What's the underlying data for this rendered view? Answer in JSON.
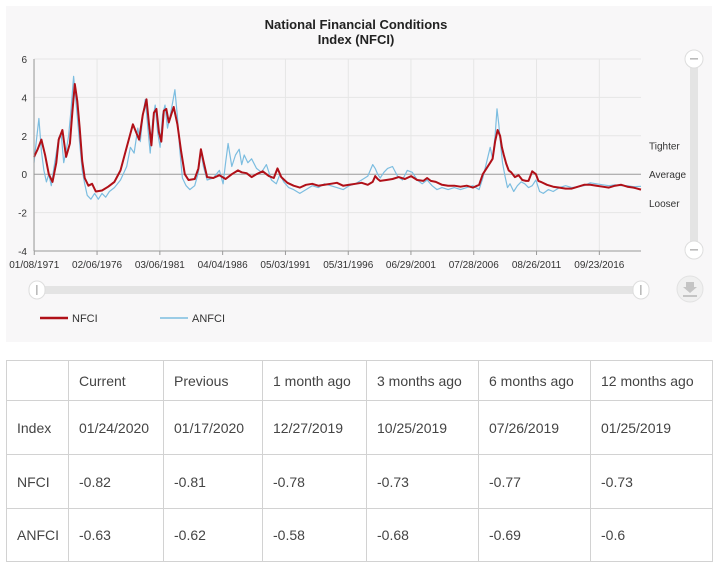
{
  "chart_data": {
    "type": "line",
    "title_line1": "National Financial Conditions",
    "title_line2": "Index (NFCI)",
    "ylim": [
      -4,
      6
    ],
    "yticks": [
      -4,
      -2,
      0,
      2,
      4,
      6
    ],
    "xlim": [
      1971.0,
      2020.1
    ],
    "xticks": [
      {
        "label": "01/08/1971",
        "x": 1971.02
      },
      {
        "label": "02/06/1976",
        "x": 1976.1
      },
      {
        "label": "03/06/1981",
        "x": 1981.18
      },
      {
        "label": "04/04/1986",
        "x": 1986.26
      },
      {
        "label": "05/03/1991",
        "x": 1991.34
      },
      {
        "label": "05/31/1996",
        "x": 1996.42
      },
      {
        "label": "06/29/2001",
        "x": 2001.49
      },
      {
        "label": "07/28/2006",
        "x": 2006.57
      },
      {
        "label": "08/26/2011",
        "x": 2011.65
      },
      {
        "label": "09/23/2016",
        "x": 2016.73
      }
    ],
    "right_labels": [
      {
        "text": "Tighter",
        "y": 1.5
      },
      {
        "text": "Average",
        "y": 0
      },
      {
        "text": "Looser",
        "y": -1.5
      }
    ],
    "series": [
      {
        "name": "NFCI",
        "color": "#b01018",
        "x": [
          1971.0,
          1971.3,
          1971.6,
          1971.9,
          1972.2,
          1972.5,
          1972.8,
          1973.0,
          1973.3,
          1973.6,
          1973.9,
          1974.1,
          1974.3,
          1974.5,
          1974.7,
          1974.9,
          1975.1,
          1975.4,
          1975.7,
          1976.0,
          1976.5,
          1977.0,
          1977.5,
          1978.0,
          1978.5,
          1979.0,
          1979.5,
          1979.8,
          1980.1,
          1980.3,
          1980.5,
          1980.7,
          1980.9,
          1981.1,
          1981.3,
          1981.5,
          1981.7,
          1981.9,
          1982.1,
          1982.3,
          1982.6,
          1982.9,
          1983.2,
          1983.5,
          1984.0,
          1984.3,
          1984.5,
          1984.7,
          1985.0,
          1985.5,
          1986.0,
          1986.5,
          1987.0,
          1987.5,
          1987.8,
          1988.2,
          1988.6,
          1989.0,
          1989.5,
          1990.0,
          1990.4,
          1990.7,
          1991.0,
          1991.5,
          1992.0,
          1992.5,
          1993.0,
          1993.5,
          1994.0,
          1994.5,
          1995.0,
          1995.5,
          1996.0,
          1996.5,
          1997.0,
          1997.5,
          1998.0,
          1998.4,
          1998.6,
          1998.8,
          1999.0,
          1999.5,
          2000.0,
          2000.5,
          2001.0,
          2001.5,
          2002.0,
          2002.5,
          2002.8,
          2003.1,
          2003.5,
          2004.0,
          2004.5,
          2005.0,
          2005.5,
          2006.0,
          2006.5,
          2007.0,
          2007.3,
          2007.6,
          2007.9,
          2008.1,
          2008.3,
          2008.5,
          2008.7,
          2008.85,
          2009.0,
          2009.2,
          2009.4,
          2009.6,
          2009.9,
          2010.2,
          2010.5,
          2010.8,
          2011.0,
          2011.3,
          2011.6,
          2011.8,
          2012.0,
          2012.5,
          2013.0,
          2013.5,
          2014.0,
          2014.5,
          2015.0,
          2015.5,
          2016.0,
          2016.5,
          2017.0,
          2017.5,
          2018.0,
          2018.5,
          2019.0,
          2019.5,
          2020.1
        ],
        "y": [
          0.9,
          1.3,
          1.8,
          1.0,
          0.0,
          -0.4,
          0.6,
          1.8,
          2.3,
          0.9,
          1.6,
          3.2,
          4.7,
          3.8,
          2.4,
          0.7,
          -0.2,
          -0.6,
          -0.5,
          -0.9,
          -0.85,
          -0.65,
          -0.4,
          0.2,
          1.4,
          2.6,
          1.8,
          3.1,
          3.9,
          2.6,
          1.5,
          3.2,
          3.4,
          2.2,
          1.7,
          3.3,
          3.4,
          2.7,
          3.1,
          3.5,
          2.6,
          1.2,
          0.0,
          -0.3,
          -0.25,
          0.3,
          1.3,
          0.7,
          -0.15,
          -0.2,
          -0.05,
          -0.25,
          0.0,
          0.2,
          0.1,
          0.05,
          -0.15,
          0.0,
          0.15,
          -0.1,
          -0.2,
          0.3,
          -0.15,
          -0.45,
          -0.6,
          -0.7,
          -0.55,
          -0.5,
          -0.6,
          -0.55,
          -0.5,
          -0.45,
          -0.6,
          -0.55,
          -0.5,
          -0.45,
          -0.55,
          -0.4,
          -0.1,
          -0.25,
          -0.35,
          -0.3,
          -0.25,
          -0.15,
          -0.25,
          -0.1,
          -0.3,
          -0.35,
          -0.2,
          -0.35,
          -0.4,
          -0.55,
          -0.6,
          -0.6,
          -0.65,
          -0.6,
          -0.7,
          -0.55,
          0.0,
          0.3,
          0.6,
          0.8,
          1.7,
          2.3,
          2.0,
          1.4,
          1.0,
          0.55,
          0.2,
          0.1,
          -0.15,
          -0.05,
          -0.3,
          -0.35,
          -0.35,
          0.15,
          0.0,
          -0.35,
          -0.4,
          -0.55,
          -0.65,
          -0.7,
          -0.75,
          -0.75,
          -0.65,
          -0.55,
          -0.55,
          -0.6,
          -0.65,
          -0.7,
          -0.6,
          -0.55,
          -0.65,
          -0.7,
          -0.8
        ]
      },
      {
        "name": "ANFCI",
        "color": "#7cbde0",
        "x": [
          1971.0,
          1971.2,
          1971.4,
          1971.6,
          1971.8,
          1972.0,
          1972.2,
          1972.4,
          1972.6,
          1972.8,
          1973.0,
          1973.2,
          1973.4,
          1973.6,
          1973.8,
          1974.0,
          1974.2,
          1974.35,
          1974.5,
          1974.7,
          1974.9,
          1975.1,
          1975.3,
          1975.6,
          1975.9,
          1976.2,
          1976.5,
          1976.8,
          1977.1,
          1977.5,
          1978.0,
          1978.5,
          1978.8,
          1979.1,
          1979.4,
          1979.6,
          1979.8,
          1980.0,
          1980.2,
          1980.4,
          1980.6,
          1980.8,
          1981.0,
          1981.2,
          1981.4,
          1981.6,
          1981.8,
          1982.0,
          1982.2,
          1982.4,
          1982.6,
          1982.8,
          1983.0,
          1983.3,
          1983.6,
          1984.0,
          1984.3,
          1984.5,
          1984.7,
          1985.0,
          1985.5,
          1986.0,
          1986.3,
          1986.5,
          1986.7,
          1987.0,
          1987.3,
          1987.6,
          1987.8,
          1988.0,
          1988.3,
          1988.6,
          1989.0,
          1989.4,
          1989.8,
          1990.2,
          1990.6,
          1990.9,
          1991.2,
          1991.6,
          1992.0,
          1992.5,
          1993.0,
          1993.5,
          1994.0,
          1994.5,
          1995.0,
          1995.5,
          1996.0,
          1996.5,
          1997.0,
          1997.5,
          1998.0,
          1998.4,
          1998.6,
          1998.8,
          1999.0,
          1999.3,
          1999.6,
          2000.0,
          2000.4,
          2000.8,
          2001.2,
          2001.6,
          2002.0,
          2002.4,
          2002.8,
          2003.2,
          2003.6,
          2004.0,
          2004.5,
          2005.0,
          2005.5,
          2006.0,
          2006.5,
          2007.0,
          2007.3,
          2007.6,
          2007.9,
          2008.1,
          2008.3,
          2008.45,
          2008.6,
          2008.75,
          2008.9,
          2009.1,
          2009.3,
          2009.5,
          2009.8,
          2010.1,
          2010.4,
          2010.7,
          2011.0,
          2011.3,
          2011.6,
          2011.9,
          2012.2,
          2012.6,
          2013.0,
          2013.5,
          2014.0,
          2014.5,
          2015.0,
          2015.5,
          2016.0,
          2016.5,
          2017.0,
          2017.5,
          2018.0,
          2018.5,
          2019.0,
          2019.5,
          2020.1
        ],
        "y": [
          0.6,
          1.8,
          2.9,
          1.2,
          0.2,
          -0.4,
          0.0,
          -0.6,
          0.3,
          1.1,
          1.9,
          2.1,
          0.6,
          1.2,
          2.0,
          3.4,
          5.1,
          4.1,
          3.0,
          1.6,
          0.2,
          -0.5,
          -1.1,
          -1.3,
          -1.0,
          -1.3,
          -1.0,
          -1.2,
          -0.9,
          -0.7,
          -0.3,
          0.4,
          1.4,
          1.1,
          2.4,
          1.7,
          3.0,
          3.9,
          2.5,
          1.1,
          2.8,
          3.6,
          2.2,
          1.4,
          3.1,
          3.6,
          2.4,
          3.0,
          3.7,
          4.4,
          3.0,
          1.2,
          -0.2,
          -0.6,
          -0.8,
          -0.6,
          0.1,
          1.2,
          0.4,
          -0.3,
          -0.2,
          0.2,
          -0.5,
          0.6,
          1.6,
          0.4,
          1.0,
          1.3,
          0.5,
          1.0,
          0.6,
          0.8,
          0.3,
          0.1,
          0.5,
          -0.3,
          -0.5,
          0.0,
          -0.4,
          -0.7,
          -0.8,
          -1.0,
          -0.8,
          -0.6,
          -0.7,
          -0.5,
          -0.6,
          -0.7,
          -0.8,
          -0.6,
          -0.5,
          -0.3,
          -0.1,
          0.5,
          0.3,
          0.0,
          -0.2,
          0.1,
          0.3,
          0.4,
          -0.1,
          -0.3,
          0.2,
          0.1,
          -0.3,
          -0.5,
          -0.3,
          -0.6,
          -0.8,
          -0.7,
          -0.8,
          -0.7,
          -0.8,
          -0.7,
          -0.6,
          -0.8,
          -0.2,
          0.6,
          1.4,
          0.8,
          2.0,
          3.4,
          2.6,
          1.5,
          0.6,
          -0.1,
          -0.7,
          -0.5,
          -0.9,
          -0.6,
          -0.4,
          -0.5,
          -0.7,
          -0.6,
          -0.3,
          -0.9,
          -1.0,
          -0.8,
          -0.9,
          -0.7,
          -0.6,
          -0.7,
          -0.65,
          -0.6,
          -0.45,
          -0.5,
          -0.55,
          -0.6,
          -0.55,
          -0.6,
          -0.6,
          -0.65,
          -0.63
        ]
      }
    ],
    "legend": [
      {
        "name": "NFCI",
        "color": "#b01018"
      },
      {
        "name": "ANFCI",
        "color": "#7cbde0"
      }
    ],
    "grid": true
  },
  "table": {
    "headers": [
      "",
      "Current",
      "Previous",
      "1 month ago",
      "3 months ago",
      "6 months ago",
      "12 months ago"
    ],
    "rows": [
      [
        "Index",
        "01/24/2020",
        "01/17/2020",
        "12/27/2019",
        "10/25/2019",
        "07/26/2019",
        "01/25/2019"
      ],
      [
        "NFCI",
        "-0.82",
        "-0.81",
        "-0.78",
        "-0.73",
        "-0.77",
        "-0.73"
      ],
      [
        "ANFCI",
        "-0.63",
        "-0.62",
        "-0.58",
        "-0.68",
        "-0.69",
        "-0.6"
      ]
    ]
  }
}
